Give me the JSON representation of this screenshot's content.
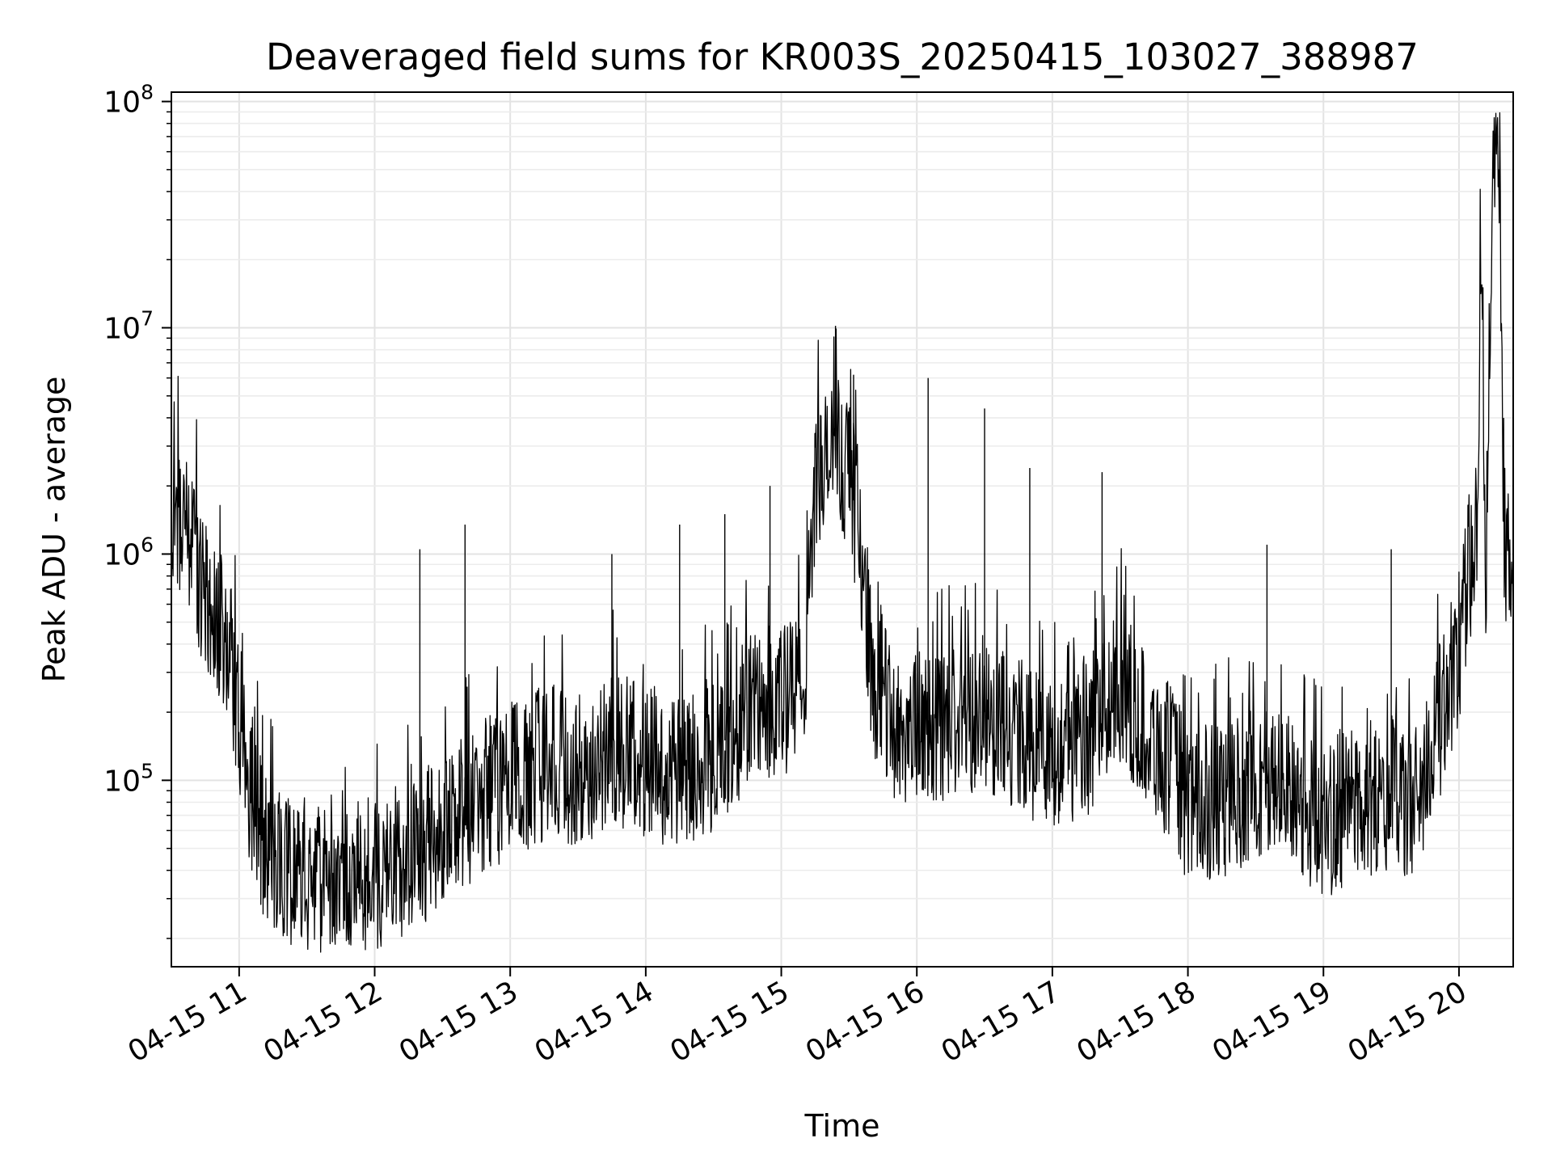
{
  "chart_data": {
    "type": "line",
    "title": "Deaveraged field sums for KR003S_20250415_103027_388987",
    "xlabel": "Time",
    "ylabel": "Peak ADU - average",
    "yscale": "log",
    "ylim": [
      15000,
      110000000
    ],
    "xlim": [
      "2025-04-15 10:30",
      "2025-04-15 20:24"
    ],
    "grid": true,
    "grid_major_color": "#e3e3e3",
    "grid_minor_color": "#ececec",
    "line_color": "#000000",
    "x_ticks": [
      {
        "x": "2025-04-15 11:00",
        "label": "04-15 11"
      },
      {
        "x": "2025-04-15 12:00",
        "label": "04-15 12"
      },
      {
        "x": "2025-04-15 13:00",
        "label": "04-15 13"
      },
      {
        "x": "2025-04-15 14:00",
        "label": "04-15 14"
      },
      {
        "x": "2025-04-15 15:00",
        "label": "04-15 15"
      },
      {
        "x": "2025-04-15 16:00",
        "label": "04-15 16"
      },
      {
        "x": "2025-04-15 17:00",
        "label": "04-15 17"
      },
      {
        "x": "2025-04-15 18:00",
        "label": "04-15 18"
      },
      {
        "x": "2025-04-15 19:00",
        "label": "04-15 19"
      },
      {
        "x": "2025-04-15 20:00",
        "label": "04-15 20"
      }
    ],
    "y_ticks": [
      {
        "y": 100000,
        "base": "10",
        "exp": "5"
      },
      {
        "y": 1000000,
        "base": "10",
        "exp": "6"
      },
      {
        "y": 10000000,
        "base": "10",
        "exp": "7"
      },
      {
        "y": 100000000,
        "base": "10",
        "exp": "8"
      }
    ],
    "series": [
      {
        "points": [
          [
            "2025-04-15 10:30",
            1600000
          ],
          [
            "2025-04-15 10:35",
            1500000
          ],
          [
            "2025-04-15 10:40",
            1100000
          ],
          [
            "2025-04-15 10:45",
            620000
          ],
          [
            "2025-04-15 10:50",
            520000
          ],
          [
            "2025-04-15 10:55",
            400000
          ],
          [
            "2025-04-15 11:00",
            200000
          ],
          [
            "2025-04-15 11:05",
            90000
          ],
          [
            "2025-04-15 11:10",
            55000
          ],
          [
            "2025-04-15 11:20",
            42000
          ],
          [
            "2025-04-15 11:30",
            38000
          ],
          [
            "2025-04-15 11:45",
            36000
          ],
          [
            "2025-04-15 12:00",
            38000
          ],
          [
            "2025-04-15 12:15",
            45000
          ],
          [
            "2025-04-15 12:30",
            60000
          ],
          [
            "2025-04-15 12:45",
            80000
          ],
          [
            "2025-04-15 13:00",
            100000
          ],
          [
            "2025-04-15 13:15",
            120000
          ],
          [
            "2025-04-15 13:30",
            110000
          ],
          [
            "2025-04-15 13:45",
            140000
          ],
          [
            "2025-04-15 14:00",
            120000
          ],
          [
            "2025-04-15 14:15",
            110000
          ],
          [
            "2025-04-15 14:30",
            130000
          ],
          [
            "2025-04-15 14:45",
            200000
          ],
          [
            "2025-04-15 15:00",
            220000
          ],
          [
            "2025-04-15 15:10",
            260000
          ],
          [
            "2025-04-15 15:15",
            2000000
          ],
          [
            "2025-04-15 15:20",
            2400000
          ],
          [
            "2025-04-15 15:25",
            3000000
          ],
          [
            "2025-04-15 15:30",
            2200000
          ],
          [
            "2025-04-15 15:35",
            1200000
          ],
          [
            "2025-04-15 15:40",
            300000
          ],
          [
            "2025-04-15 15:50",
            170000
          ],
          [
            "2025-04-15 16:00",
            170000
          ],
          [
            "2025-04-15 16:15",
            180000
          ],
          [
            "2025-04-15 16:30",
            200000
          ],
          [
            "2025-04-15 16:45",
            160000
          ],
          [
            "2025-04-15 17:00",
            130000
          ],
          [
            "2025-04-15 17:15",
            150000
          ],
          [
            "2025-04-15 17:30",
            260000
          ],
          [
            "2025-04-15 17:45",
            150000
          ],
          [
            "2025-04-15 17:55",
            110000
          ],
          [
            "2025-04-15 18:00",
            75000
          ],
          [
            "2025-04-15 18:15",
            80000
          ],
          [
            "2025-04-15 18:30",
            100000
          ],
          [
            "2025-04-15 18:45",
            90000
          ],
          [
            "2025-04-15 19:00",
            65000
          ],
          [
            "2025-04-15 19:15",
            80000
          ],
          [
            "2025-04-15 19:30",
            90000
          ],
          [
            "2025-04-15 19:40",
            75000
          ],
          [
            "2025-04-15 19:50",
            160000
          ],
          [
            "2025-04-15 20:00",
            400000
          ],
          [
            "2025-04-15 20:05",
            900000
          ],
          [
            "2025-04-15 20:08",
            1300000
          ],
          [
            "2025-04-15 20:10",
            26000000
          ],
          [
            "2025-04-15 20:12",
            800000
          ],
          [
            "2025-04-15 20:15",
            65000000
          ],
          [
            "2025-04-15 20:18",
            60000000
          ],
          [
            "2025-04-15 20:20",
            1200000
          ],
          [
            "2025-04-15 20:24",
            750000
          ]
        ],
        "spikes": [
          [
            "2025-04-15 12:20",
            1050000
          ],
          [
            "2025-04-15 12:40",
            1350000
          ],
          [
            "2025-04-15 14:15",
            1350000
          ],
          [
            "2025-04-15 14:35",
            1500000
          ],
          [
            "2025-04-15 14:55",
            2000000
          ],
          [
            "2025-04-15 15:24",
            10200000
          ],
          [
            "2025-04-15 15:32",
            6200000
          ],
          [
            "2025-04-15 16:05",
            6000000
          ],
          [
            "2025-04-15 16:30",
            4400000
          ],
          [
            "2025-04-15 16:50",
            2400000
          ],
          [
            "2025-04-15 17:22",
            2300000
          ],
          [
            "2025-04-15 19:30",
            1050000
          ],
          [
            "2025-04-15 13:45",
            1000000
          ],
          [
            "2025-04-15 18:35",
            1100000
          ]
        ]
      }
    ]
  }
}
